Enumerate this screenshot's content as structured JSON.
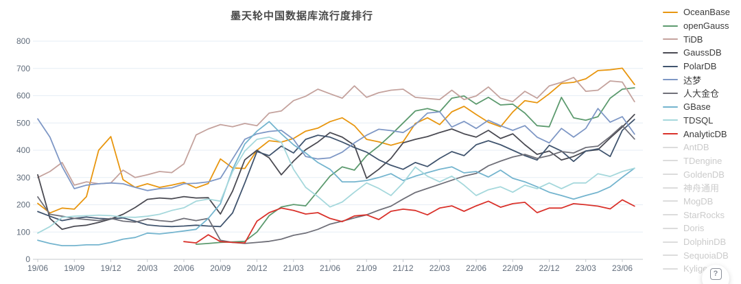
{
  "title": "墨天轮中国数据库流行度排行",
  "help_button": {
    "icon": "?"
  },
  "chart_data": {
    "type": "line",
    "title": "墨天轮中国数据库流行度排行",
    "xlabel": "",
    "ylabel": "",
    "ylim": [
      0,
      800
    ],
    "y_ticks": [
      0,
      100,
      200,
      300,
      400,
      500,
      600,
      700,
      800
    ],
    "grid": true,
    "legend_position": "right",
    "x_tick_every": 3,
    "x_labels": [
      "19/06",
      "19/07",
      "19/08",
      "19/09",
      "19/10",
      "19/11",
      "19/12",
      "20/01",
      "20/02",
      "20/03",
      "20/04",
      "20/05",
      "20/06",
      "20/07",
      "20/08",
      "20/09",
      "20/10",
      "20/11",
      "20/12",
      "21/01",
      "21/02",
      "21/03",
      "21/04",
      "21/05",
      "21/06",
      "21/07",
      "21/08",
      "21/09",
      "21/10",
      "21/11",
      "21/12",
      "22/01",
      "22/02",
      "22/03",
      "22/04",
      "22/05",
      "22/06",
      "22/07",
      "22/08",
      "22/09",
      "22/10",
      "22/11",
      "22/12",
      "23/01",
      "23/02",
      "23/03",
      "23/04",
      "23/05",
      "23/06",
      "23/07"
    ],
    "series": [
      {
        "name": "OceanBase",
        "color": "#E8960F",
        "enabled": true,
        "values": [
          205,
          170,
          188,
          184,
          230,
          400,
          450,
          292,
          264,
          277,
          264,
          272,
          282,
          262,
          278,
          368,
          335,
          333,
          400,
          435,
          430,
          443,
          470,
          481,
          505,
          519,
          490,
          440,
          431,
          418,
          431,
          498,
          519,
          494,
          541,
          561,
          531,
          503,
          486,
          540,
          582,
          574,
          607,
          645,
          649,
          662,
          692,
          695,
          701,
          641
        ]
      },
      {
        "name": "openGauss",
        "color": "#5C9A6E",
        "enabled": true,
        "values": [
          null,
          null,
          null,
          null,
          null,
          null,
          null,
          null,
          null,
          null,
          null,
          null,
          null,
          55,
          58,
          62,
          64,
          66,
          100,
          160,
          192,
          201,
          196,
          250,
          305,
          339,
          327,
          380,
          415,
          456,
          500,
          544,
          553,
          541,
          591,
          599,
          569,
          594,
          566,
          569,
          536,
          490,
          486,
          594,
          519,
          510,
          523,
          591,
          624,
          629
        ]
      },
      {
        "name": "TiDB",
        "color": "#C4A29D",
        "enabled": true,
        "values": [
          300,
          322,
          355,
          272,
          284,
          277,
          280,
          327,
          300,
          310,
          322,
          318,
          350,
          456,
          478,
          494,
          486,
          498,
          490,
          536,
          544,
          582,
          598,
          624,
          607,
          591,
          636,
          594,
          611,
          620,
          624,
          594,
          590,
          586,
          620,
          586,
          599,
          632,
          591,
          578,
          616,
          591,
          636,
          649,
          667,
          616,
          620,
          654,
          650,
          578
        ]
      },
      {
        "name": "GaussDB",
        "color": "#4A4A52",
        "enabled": true,
        "values": [
          310,
          150,
          110,
          121,
          125,
          135,
          148,
          165,
          190,
          220,
          225,
          222,
          230,
          225,
          226,
          166,
          250,
          365,
          400,
          372,
          310,
          360,
          402,
          430,
          465,
          448,
          418,
          297,
          330,
          370,
          427,
          440,
          450,
          465,
          478,
          460,
          448,
          473,
          443,
          460,
          420,
          385,
          397,
          364,
          377,
          397,
          402,
          445,
          485,
          531
        ]
      },
      {
        "name": "PolarDB",
        "color": "#40546E",
        "enabled": true,
        "values": [
          175,
          158,
          142,
          150,
          155,
          150,
          148,
          152,
          140,
          126,
          122,
          120,
          122,
          125,
          122,
          120,
          170,
          280,
          395,
          380,
          415,
          390,
          440,
          455,
          448,
          430,
          410,
          393,
          365,
          345,
          330,
          355,
          340,
          370,
          395,
          380,
          420,
          435,
          420,
          400,
          380,
          364,
          418,
          397,
          359,
          397,
          405,
          377,
          473,
          513
        ]
      },
      {
        "name": "达梦",
        "color": "#7E97C5",
        "enabled": true,
        "values": [
          515,
          448,
          340,
          259,
          272,
          277,
          280,
          277,
          264,
          252,
          259,
          262,
          277,
          279,
          284,
          297,
          368,
          440,
          460,
          469,
          473,
          440,
          377,
          368,
          372,
          393,
          427,
          455,
          477,
          472,
          465,
          494,
          536,
          541,
          485,
          506,
          480,
          510,
          490,
          473,
          490,
          448,
          427,
          480,
          448,
          480,
          553,
          503,
          523,
          459
        ]
      },
      {
        "name": "人大金仓",
        "color": "#6F6F78",
        "enabled": true,
        "values": [
          229,
          165,
          158,
          150,
          146,
          142,
          150,
          140,
          136,
          148,
          142,
          138,
          150,
          142,
          150,
          70,
          62,
          58,
          62,
          66,
          74,
          88,
          96,
          110,
          129,
          140,
          152,
          163,
          180,
          195,
          221,
          245,
          260,
          275,
          290,
          305,
          315,
          343,
          360,
          375,
          385,
          370,
          380,
          395,
          390,
          410,
          415,
          450,
          490,
          441
        ]
      },
      {
        "name": "GBase",
        "color": "#73B4CE",
        "enabled": true,
        "values": [
          70,
          58,
          50,
          50,
          53,
          53,
          62,
          74,
          80,
          96,
          93,
          98,
          104,
          110,
          150,
          204,
          330,
          423,
          470,
          505,
          460,
          420,
          390,
          355,
          330,
          284,
          284,
          289,
          300,
          314,
          289,
          305,
          318,
          330,
          339,
          317,
          322,
          302,
          327,
          297,
          284,
          266,
          246,
          234,
          221,
          234,
          246,
          266,
          301,
          334
        ]
      },
      {
        "name": "TDSQL",
        "color": "#A5D8DC",
        "enabled": true,
        "values": [
          96,
          120,
          154,
          158,
          160,
          162,
          160,
          155,
          154,
          158,
          165,
          179,
          189,
          213,
          221,
          213,
          322,
          397,
          440,
          448,
          430,
          330,
          264,
          230,
          192,
          210,
          246,
          280,
          260,
          234,
          280,
          338,
          305,
          284,
          305,
          272,
          234,
          255,
          266,
          246,
          272,
          259,
          280,
          259,
          280,
          280,
          314,
          304,
          322,
          334
        ]
      },
      {
        "name": "AnalyticDB",
        "color": "#D9312A",
        "enabled": true,
        "values": [
          null,
          null,
          null,
          null,
          null,
          null,
          null,
          null,
          null,
          null,
          null,
          null,
          65,
          60,
          90,
          65,
          62,
          60,
          140,
          171,
          188,
          179,
          166,
          171,
          150,
          138,
          159,
          163,
          146,
          176,
          184,
          179,
          163,
          188,
          196,
          176,
          196,
          213,
          191,
          204,
          209,
          171,
          188,
          188,
          204,
          200,
          195,
          185,
          218,
          195
        ]
      },
      {
        "name": "AntDB",
        "color": "#DCDCDC",
        "enabled": false,
        "values": []
      },
      {
        "name": "TDengine",
        "color": "#DCDCDC",
        "enabled": false,
        "values": []
      },
      {
        "name": "GoldenDB",
        "color": "#DCDCDC",
        "enabled": false,
        "values": []
      },
      {
        "name": "神舟通用",
        "color": "#DCDCDC",
        "enabled": false,
        "values": []
      },
      {
        "name": "MogDB",
        "color": "#DCDCDC",
        "enabled": false,
        "values": []
      },
      {
        "name": "StarRocks",
        "color": "#DCDCDC",
        "enabled": false,
        "values": []
      },
      {
        "name": "Doris",
        "color": "#DCDCDC",
        "enabled": false,
        "values": []
      },
      {
        "name": "DolphinDB",
        "color": "#DCDCDC",
        "enabled": false,
        "values": []
      },
      {
        "name": "SequoiaDB",
        "color": "#DCDCDC",
        "enabled": false,
        "values": []
      },
      {
        "name": "Kyligence",
        "color": "#DCDCDC",
        "enabled": false,
        "values": []
      }
    ],
    "style": {
      "grid_color": "#E6EDF5",
      "axis_color": "#C4C8CE",
      "tick_label_color": "#5F6B7A"
    }
  }
}
